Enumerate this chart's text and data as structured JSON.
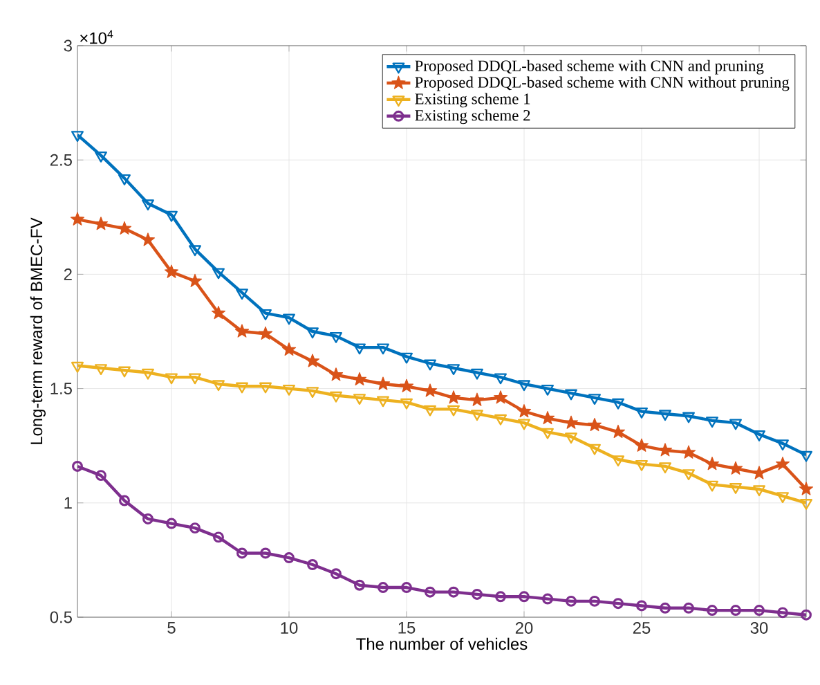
{
  "chart_data": {
    "type": "line",
    "xlabel": "The number of vehicles",
    "ylabel": "Long-term reward of BMEC-FV",
    "annotations": [
      "×10$^{4}$"
    ],
    "x": [
      1,
      2,
      3,
      4,
      5,
      6,
      7,
      8,
      9,
      10,
      11,
      12,
      13,
      14,
      15,
      16,
      17,
      18,
      19,
      20,
      21,
      22,
      23,
      24,
      25,
      26,
      27,
      28,
      29,
      30,
      31,
      32
    ],
    "xlim": [
      1,
      32
    ],
    "xticks": [
      5,
      10,
      15,
      20,
      25,
      30
    ],
    "ylim": [
      0.5,
      3
    ],
    "yticks": [
      0.5,
      1,
      1.5,
      2,
      2.5,
      3
    ],
    "grid": true,
    "legend": "top right",
    "series": [
      {
        "name": "Proposed DDQL-based scheme with CNN and pruning",
        "color": "#0072bd",
        "marker": "triangle",
        "values": [
          2.61,
          2.52,
          2.42,
          2.31,
          2.26,
          2.11,
          2.01,
          1.92,
          1.83,
          1.81,
          1.75,
          1.73,
          1.68,
          1.68,
          1.64,
          1.61,
          1.59,
          1.57,
          1.55,
          1.52,
          1.5,
          1.48,
          1.46,
          1.44,
          1.4,
          1.39,
          1.38,
          1.36,
          1.35,
          1.3,
          1.26,
          1.21
        ]
      },
      {
        "name": "Proposed DDQL-based scheme with CNN without pruning",
        "color": "#d95319",
        "marker": "star",
        "values": [
          2.24,
          2.22,
          2.2,
          2.15,
          2.01,
          1.97,
          1.83,
          1.75,
          1.74,
          1.67,
          1.62,
          1.56,
          1.54,
          1.52,
          1.51,
          1.49,
          1.46,
          1.45,
          1.46,
          1.4,
          1.37,
          1.35,
          1.34,
          1.31,
          1.25,
          1.23,
          1.22,
          1.17,
          1.15,
          1.13,
          1.17,
          1.06
        ]
      },
      {
        "name": "Existing scheme 1",
        "color": "#edb120",
        "marker": "triangle",
        "values": [
          1.6,
          1.59,
          1.58,
          1.57,
          1.55,
          1.55,
          1.52,
          1.51,
          1.51,
          1.5,
          1.49,
          1.47,
          1.46,
          1.45,
          1.44,
          1.41,
          1.41,
          1.39,
          1.37,
          1.35,
          1.31,
          1.29,
          1.24,
          1.19,
          1.17,
          1.16,
          1.13,
          1.08,
          1.07,
          1.06,
          1.03,
          1.0
        ]
      },
      {
        "name": "Existing scheme 2",
        "color": "#7e2f8e",
        "marker": "circle",
        "values": [
          1.16,
          1.12,
          1.01,
          0.93,
          0.91,
          0.89,
          0.85,
          0.78,
          0.78,
          0.76,
          0.73,
          0.69,
          0.64,
          0.63,
          0.63,
          0.61,
          0.61,
          0.6,
          0.59,
          0.59,
          0.58,
          0.57,
          0.57,
          0.56,
          0.55,
          0.54,
          0.54,
          0.53,
          0.53,
          0.53,
          0.52,
          0.51
        ]
      }
    ]
  }
}
